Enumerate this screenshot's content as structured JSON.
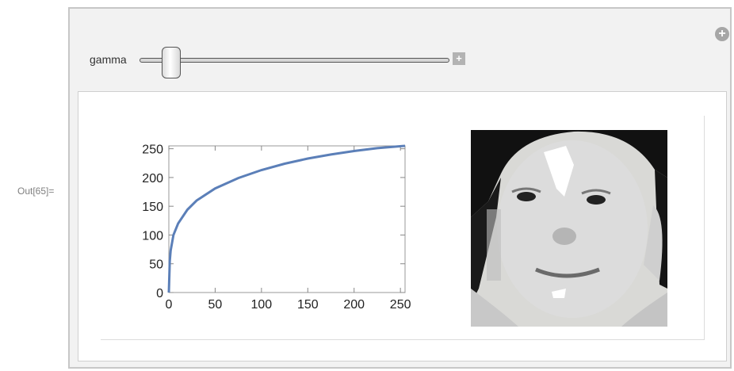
{
  "output": {
    "label": "Out[65]="
  },
  "controls": {
    "slider_label": "gamma",
    "add_icon": "plus-circle-icon",
    "expand_icon": "square-plus-icon"
  },
  "chart_data": {
    "type": "line",
    "title": "",
    "xlabel": "",
    "ylabel": "",
    "xlim": [
      0,
      255
    ],
    "ylim": [
      0,
      255
    ],
    "xticks": [
      0,
      50,
      100,
      150,
      200,
      250
    ],
    "yticks": [
      0,
      50,
      100,
      150,
      200,
      250
    ],
    "series": [
      {
        "color": "#5b7fb8",
        "x": [
          0,
          1,
          2,
          5,
          10,
          20,
          30,
          50,
          75,
          100,
          125,
          150,
          175,
          200,
          225,
          255
        ],
        "y": [
          0,
          55,
          73,
          100,
          120,
          144,
          160,
          181,
          199,
          213,
          224,
          233,
          240,
          246,
          251,
          255
        ]
      }
    ],
    "grid": false
  },
  "image": {
    "subject": "grayscale-face-portrait"
  }
}
